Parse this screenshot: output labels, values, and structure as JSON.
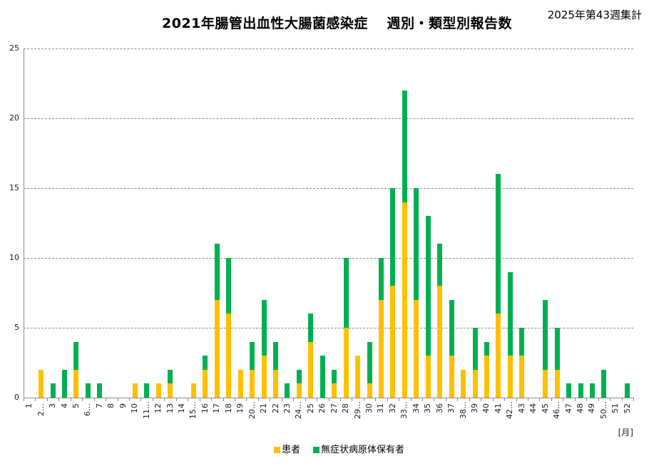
{
  "title": "2021年腸管出血性大腸菌感染症　 週別・類型別報告数",
  "subtitle": "2025年第43週集計",
  "x_unit_label": "[月]",
  "legend": [
    {
      "label": "患者",
      "color": "#ffc000"
    },
    {
      "label": "無症状病原体保有者",
      "color": "#00b050"
    }
  ],
  "chart_data": {
    "type": "bar",
    "stacked": true,
    "title": "2021年腸管出血性大腸菌感染症 週別・類型別報告数",
    "subtitle": "2025年第43週集計",
    "xlabel": "[月]",
    "ylabel": "",
    "ylim": [
      0,
      25
    ],
    "yticks": [
      0,
      5,
      10,
      15,
      20,
      25
    ],
    "grid": true,
    "legend_position": "bottom",
    "categories": [
      "1",
      "2…",
      "3",
      "4",
      "5",
      "6…",
      "7",
      "8",
      "9",
      "10",
      "11…",
      "12",
      "13",
      "14",
      "15…",
      "16",
      "17",
      "18",
      "19",
      "20…",
      "21",
      "22",
      "23",
      "24…",
      "25",
      "26",
      "27",
      "28",
      "29…",
      "30",
      "31",
      "32",
      "33…",
      "34",
      "35",
      "36",
      "37",
      "38…",
      "39",
      "40",
      "41",
      "42…",
      "43",
      "44",
      "45",
      "46…",
      "47",
      "48",
      "49",
      "50…",
      "51",
      "52"
    ],
    "series": [
      {
        "name": "患者",
        "color": "#ffc000",
        "values": [
          0,
          2,
          0,
          0,
          2,
          0,
          0,
          0,
          0,
          1,
          0,
          1,
          1,
          0,
          1,
          2,
          7,
          6,
          2,
          2,
          3,
          2,
          0,
          1,
          4,
          0,
          1,
          5,
          3,
          1,
          7,
          8,
          14,
          7,
          3,
          8,
          3,
          2,
          2,
          3,
          6,
          3,
          3,
          0,
          2,
          2,
          0,
          0,
          0,
          0,
          0,
          0
        ]
      },
      {
        "name": "無症状病原体保有者",
        "color": "#00b050",
        "values": [
          0,
          0,
          1,
          2,
          2,
          1,
          1,
          0,
          0,
          0,
          1,
          0,
          1,
          0,
          0,
          1,
          4,
          4,
          0,
          2,
          4,
          2,
          1,
          1,
          2,
          3,
          1,
          5,
          0,
          3,
          3,
          7,
          8,
          8,
          10,
          3,
          4,
          0,
          3,
          1,
          10,
          6,
          2,
          0,
          5,
          3,
          1,
          1,
          1,
          2,
          0,
          1
        ]
      }
    ]
  }
}
